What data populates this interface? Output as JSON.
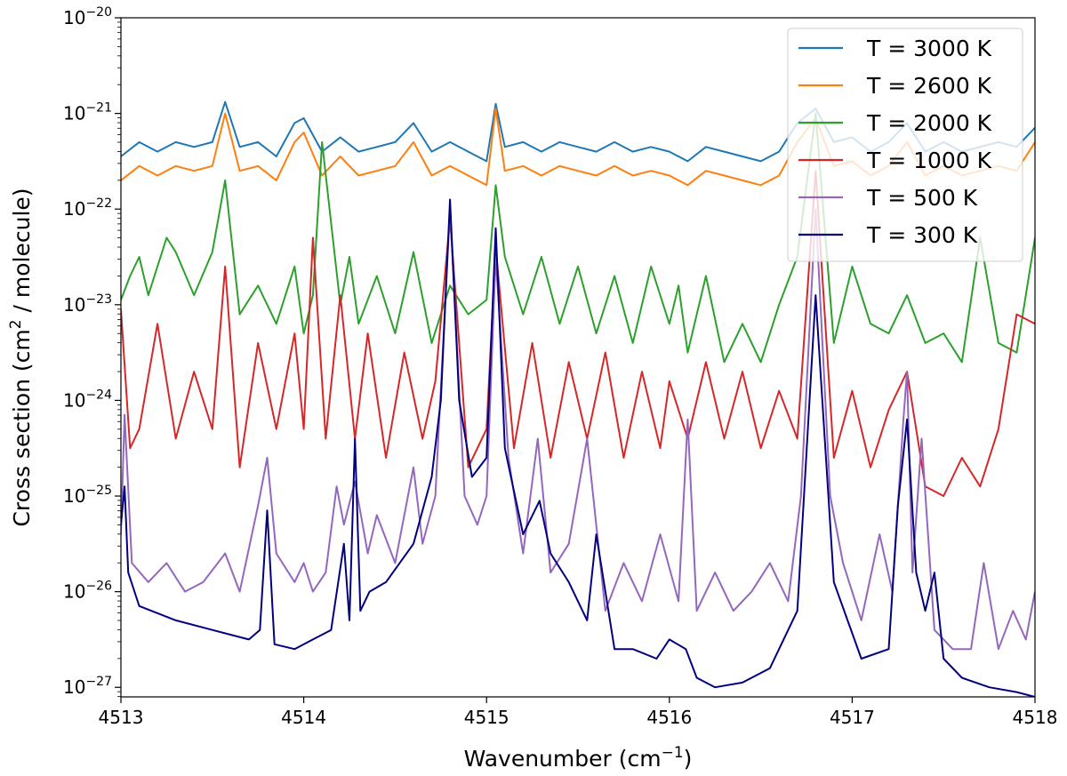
{
  "chart_data": {
    "type": "line",
    "title": "",
    "xlabel": {
      "prefix": "Wavenumber (cm",
      "sup": "−1",
      "suffix": ")"
    },
    "ylabel": {
      "prefix": "Cross section (cm",
      "sup": "2",
      "suffix": " / molecule)"
    },
    "xlim": [
      4513,
      4518
    ],
    "ylim_log10": [
      -27.1,
      -20
    ],
    "y_scale": "log",
    "x_ticks": [
      4513,
      4514,
      4515,
      4516,
      4517,
      4518
    ],
    "x_tick_labels": [
      "4513",
      "4514",
      "4515",
      "4516",
      "4517",
      "4518"
    ],
    "y_ticks_log10": [
      -27,
      -26,
      -25,
      -24,
      -23,
      -22,
      -21,
      -20
    ],
    "y_tick_labels": [
      {
        "base": "10",
        "exp": "−27"
      },
      {
        "base": "10",
        "exp": "−26"
      },
      {
        "base": "10",
        "exp": "−25"
      },
      {
        "base": "10",
        "exp": "−24"
      },
      {
        "base": "10",
        "exp": "−23"
      },
      {
        "base": "10",
        "exp": "−22"
      },
      {
        "base": "10",
        "exp": "−21"
      },
      {
        "base": "10",
        "exp": "−20"
      }
    ],
    "legend_position": "top-right",
    "series": [
      {
        "name": "T = 3000 K",
        "color": "#1f77b4",
        "x": [
          4513.0,
          4513.1,
          4513.2,
          4513.3,
          4513.4,
          4513.5,
          4513.57,
          4513.65,
          4513.75,
          4513.85,
          4513.95,
          4514.0,
          4514.1,
          4514.2,
          4514.3,
          4514.4,
          4514.5,
          4514.6,
          4514.7,
          4514.8,
          4514.9,
          4515.0,
          4515.05,
          4515.1,
          4515.2,
          4515.3,
          4515.4,
          4515.5,
          4515.6,
          4515.7,
          4515.8,
          4515.9,
          4516.0,
          4516.1,
          4516.2,
          4516.3,
          4516.4,
          4516.5,
          4516.6,
          4516.7,
          4516.8,
          4516.9,
          4517.0,
          4517.1,
          4517.2,
          4517.3,
          4517.4,
          4517.5,
          4517.6,
          4517.7,
          4517.8,
          4517.9,
          4518.0
        ],
        "y_log10": [
          -21.45,
          -21.3,
          -21.4,
          -21.3,
          -21.35,
          -21.3,
          -20.88,
          -21.35,
          -21.3,
          -21.45,
          -21.1,
          -21.05,
          -21.4,
          -21.25,
          -21.4,
          -21.35,
          -21.3,
          -21.1,
          -21.4,
          -21.3,
          -21.4,
          -21.5,
          -20.9,
          -21.35,
          -21.3,
          -21.4,
          -21.3,
          -21.35,
          -21.4,
          -21.3,
          -21.4,
          -21.35,
          -21.4,
          -21.5,
          -21.35,
          -21.4,
          -21.45,
          -21.5,
          -21.4,
          -21.1,
          -20.95,
          -21.3,
          -21.25,
          -21.4,
          -21.3,
          -21.1,
          -21.4,
          -21.3,
          -21.4,
          -21.35,
          -21.3,
          -21.35,
          -21.15
        ]
      },
      {
        "name": "T = 2600 K",
        "color": "#ff7f0e",
        "x": [
          4513.0,
          4513.1,
          4513.2,
          4513.3,
          4513.4,
          4513.5,
          4513.57,
          4513.65,
          4513.75,
          4513.85,
          4513.95,
          4514.0,
          4514.1,
          4514.2,
          4514.3,
          4514.4,
          4514.5,
          4514.6,
          4514.7,
          4514.8,
          4514.9,
          4515.0,
          4515.05,
          4515.1,
          4515.2,
          4515.3,
          4515.4,
          4515.5,
          4515.6,
          4515.7,
          4515.8,
          4515.9,
          4516.0,
          4516.1,
          4516.2,
          4516.3,
          4516.4,
          4516.5,
          4516.6,
          4516.7,
          4516.8,
          4516.9,
          4517.0,
          4517.1,
          4517.2,
          4517.3,
          4517.4,
          4517.5,
          4517.6,
          4517.7,
          4517.8,
          4517.9,
          4518.0
        ],
        "y_log10": [
          -21.7,
          -21.55,
          -21.65,
          -21.55,
          -21.6,
          -21.55,
          -21.0,
          -21.6,
          -21.55,
          -21.7,
          -21.3,
          -21.2,
          -21.65,
          -21.45,
          -21.65,
          -21.6,
          -21.55,
          -21.3,
          -21.65,
          -21.55,
          -21.65,
          -21.75,
          -20.95,
          -21.6,
          -21.55,
          -21.65,
          -21.55,
          -21.6,
          -21.65,
          -21.55,
          -21.65,
          -21.6,
          -21.65,
          -21.75,
          -21.6,
          -21.65,
          -21.7,
          -21.75,
          -21.65,
          -21.3,
          -21.05,
          -21.55,
          -21.5,
          -21.65,
          -21.55,
          -21.3,
          -21.65,
          -21.55,
          -21.65,
          -21.6,
          -21.55,
          -21.6,
          -21.3
        ]
      },
      {
        "name": "T = 2000 K",
        "color": "#2ca02c",
        "x": [
          4513.0,
          4513.05,
          4513.1,
          4513.15,
          4513.25,
          4513.3,
          4513.4,
          4513.5,
          4513.57,
          4513.65,
          4513.75,
          4513.85,
          4513.95,
          4514.0,
          4514.05,
          4514.1,
          4514.2,
          4514.25,
          4514.3,
          4514.4,
          4514.5,
          4514.6,
          4514.7,
          4514.8,
          4514.9,
          4515.0,
          4515.05,
          4515.1,
          4515.2,
          4515.3,
          4515.4,
          4515.5,
          4515.6,
          4515.7,
          4515.8,
          4515.9,
          4516.0,
          4516.05,
          4516.1,
          4516.2,
          4516.3,
          4516.4,
          4516.5,
          4516.6,
          4516.7,
          4516.8,
          4516.9,
          4517.0,
          4517.1,
          4517.2,
          4517.3,
          4517.4,
          4517.5,
          4517.6,
          4517.7,
          4517.8,
          4517.9,
          4518.0
        ],
        "y_log10": [
          -22.95,
          -22.7,
          -22.5,
          -22.9,
          -22.3,
          -22.45,
          -22.9,
          -22.45,
          -21.7,
          -23.1,
          -22.8,
          -23.2,
          -22.6,
          -23.3,
          -22.9,
          -21.3,
          -23.0,
          -22.5,
          -23.2,
          -22.7,
          -23.3,
          -22.45,
          -23.4,
          -22.8,
          -23.1,
          -22.95,
          -21.75,
          -22.5,
          -23.1,
          -22.5,
          -23.2,
          -22.6,
          -23.3,
          -22.7,
          -23.4,
          -22.6,
          -23.2,
          -22.8,
          -23.5,
          -22.7,
          -23.6,
          -23.2,
          -23.6,
          -23.0,
          -22.5,
          -21.0,
          -23.4,
          -22.6,
          -23.2,
          -23.3,
          -22.9,
          -23.4,
          -23.3,
          -23.6,
          -22.3,
          -23.4,
          -23.5,
          -22.3
        ]
      },
      {
        "name": "T = 1000 K",
        "color": "#d62728",
        "x": [
          4513.0,
          4513.05,
          4513.1,
          4513.2,
          4513.3,
          4513.4,
          4513.5,
          4513.57,
          4513.65,
          4513.75,
          4513.85,
          4513.95,
          4514.0,
          4514.05,
          4514.12,
          4514.2,
          4514.28,
          4514.35,
          4514.45,
          4514.55,
          4514.65,
          4514.72,
          4514.8,
          4514.9,
          4515.0,
          4515.05,
          4515.15,
          4515.25,
          4515.35,
          4515.45,
          4515.55,
          4515.65,
          4515.75,
          4515.85,
          4515.95,
          4516.0,
          4516.1,
          4516.2,
          4516.3,
          4516.4,
          4516.5,
          4516.6,
          4516.7,
          4516.8,
          4516.9,
          4517.0,
          4517.1,
          4517.2,
          4517.3,
          4517.4,
          4517.5,
          4517.6,
          4517.7,
          4517.8,
          4517.9,
          4518.0
        ],
        "y_log10": [
          -23.05,
          -24.5,
          -24.3,
          -23.2,
          -24.4,
          -23.7,
          -24.3,
          -22.6,
          -24.7,
          -23.4,
          -24.3,
          -23.3,
          -24.3,
          -22.3,
          -24.4,
          -22.9,
          -24.4,
          -23.3,
          -24.6,
          -23.5,
          -24.4,
          -23.8,
          -22.1,
          -24.7,
          -24.3,
          -22.4,
          -24.5,
          -23.4,
          -24.6,
          -23.6,
          -24.4,
          -23.5,
          -24.6,
          -23.7,
          -24.5,
          -23.8,
          -24.4,
          -23.6,
          -24.4,
          -23.7,
          -24.5,
          -23.9,
          -24.4,
          -21.6,
          -24.6,
          -23.9,
          -24.7,
          -24.1,
          -23.7,
          -24.9,
          -25.0,
          -24.6,
          -24.9,
          -24.3,
          -23.1,
          -23.2
        ]
      },
      {
        "name": "T = 500 K",
        "color": "#9467bd",
        "x": [
          4513.0,
          4513.02,
          4513.06,
          4513.15,
          4513.25,
          4513.35,
          4513.45,
          4513.57,
          4513.65,
          4513.75,
          4513.8,
          4513.85,
          4513.95,
          4514.0,
          4514.05,
          4514.12,
          4514.18,
          4514.22,
          4514.28,
          4514.35,
          4514.4,
          4514.5,
          4514.6,
          4514.65,
          4514.72,
          4514.8,
          4514.88,
          4514.95,
          4515.0,
          4515.05,
          4515.12,
          4515.2,
          4515.28,
          4515.35,
          4515.45,
          4515.55,
          4515.65,
          4515.75,
          4515.85,
          4515.95,
          4516.05,
          4516.1,
          4516.15,
          4516.25,
          4516.35,
          4516.45,
          4516.55,
          4516.65,
          4516.72,
          4516.8,
          4516.88,
          4516.95,
          4517.05,
          4517.15,
          4517.22,
          4517.28,
          4517.3,
          4517.33,
          4517.38,
          4517.45,
          4517.55,
          4517.65,
          4517.72,
          4517.8,
          4517.88,
          4517.95,
          4518.0
        ],
        "y_log10": [
          -25.4,
          -24.15,
          -25.7,
          -25.9,
          -25.7,
          -26.0,
          -25.9,
          -25.6,
          -26.0,
          -25.1,
          -24.6,
          -25.6,
          -25.9,
          -25.7,
          -26.0,
          -25.8,
          -24.9,
          -25.3,
          -24.85,
          -25.6,
          -25.2,
          -25.7,
          -24.7,
          -25.5,
          -25.0,
          -22.0,
          -25.0,
          -25.3,
          -25.0,
          -22.5,
          -24.6,
          -25.6,
          -24.4,
          -25.8,
          -25.5,
          -24.4,
          -26.2,
          -25.7,
          -26.1,
          -25.4,
          -26.1,
          -24.2,
          -26.2,
          -25.8,
          -26.2,
          -26.0,
          -25.7,
          -26.1,
          -25.0,
          -22.0,
          -25.0,
          -25.7,
          -26.3,
          -25.4,
          -26.0,
          -24.2,
          -23.7,
          -25.8,
          -24.4,
          -26.4,
          -26.6,
          -26.6,
          -25.7,
          -26.6,
          -26.2,
          -26.5,
          -26.0
        ]
      },
      {
        "name": "T = 300 K",
        "color": "#000080",
        "x": [
          4513.0,
          4513.02,
          4513.04,
          4513.1,
          4513.3,
          4513.5,
          4513.7,
          4513.76,
          4513.8,
          4513.84,
          4513.95,
          4514.05,
          4514.15,
          4514.22,
          4514.25,
          4514.28,
          4514.31,
          4514.36,
          4514.45,
          4514.6,
          4514.7,
          4514.75,
          4514.8,
          4514.85,
          4514.92,
          4515.0,
          4515.05,
          4515.1,
          4515.2,
          4515.29,
          4515.35,
          4515.45,
          4515.55,
          4515.6,
          4515.7,
          4515.8,
          4515.93,
          4516.0,
          4516.09,
          4516.15,
          4516.25,
          4516.4,
          4516.55,
          4516.7,
          4516.8,
          4516.9,
          4517.05,
          4517.2,
          4517.25,
          4517.3,
          4517.35,
          4517.4,
          4517.45,
          4517.5,
          4517.6,
          4517.75,
          4517.9,
          4518.0
        ],
        "y_log10": [
          -25.3,
          -24.9,
          -25.8,
          -26.15,
          -26.3,
          -26.4,
          -26.5,
          -26.4,
          -25.15,
          -26.55,
          -26.6,
          -26.5,
          -26.4,
          -25.5,
          -26.3,
          -24.4,
          -26.2,
          -26.0,
          -25.9,
          -25.5,
          -24.8,
          -24.0,
          -21.9,
          -24.0,
          -24.8,
          -24.6,
          -22.2,
          -24.5,
          -25.4,
          -25.05,
          -25.6,
          -25.9,
          -26.3,
          -25.4,
          -26.6,
          -26.6,
          -26.7,
          -26.5,
          -26.6,
          -26.9,
          -27.0,
          -26.95,
          -26.8,
          -26.2,
          -22.9,
          -25.9,
          -26.7,
          -26.6,
          -25.1,
          -24.2,
          -25.8,
          -26.2,
          -25.8,
          -26.7,
          -26.9,
          -27.0,
          -27.05,
          -27.1
        ]
      }
    ]
  }
}
